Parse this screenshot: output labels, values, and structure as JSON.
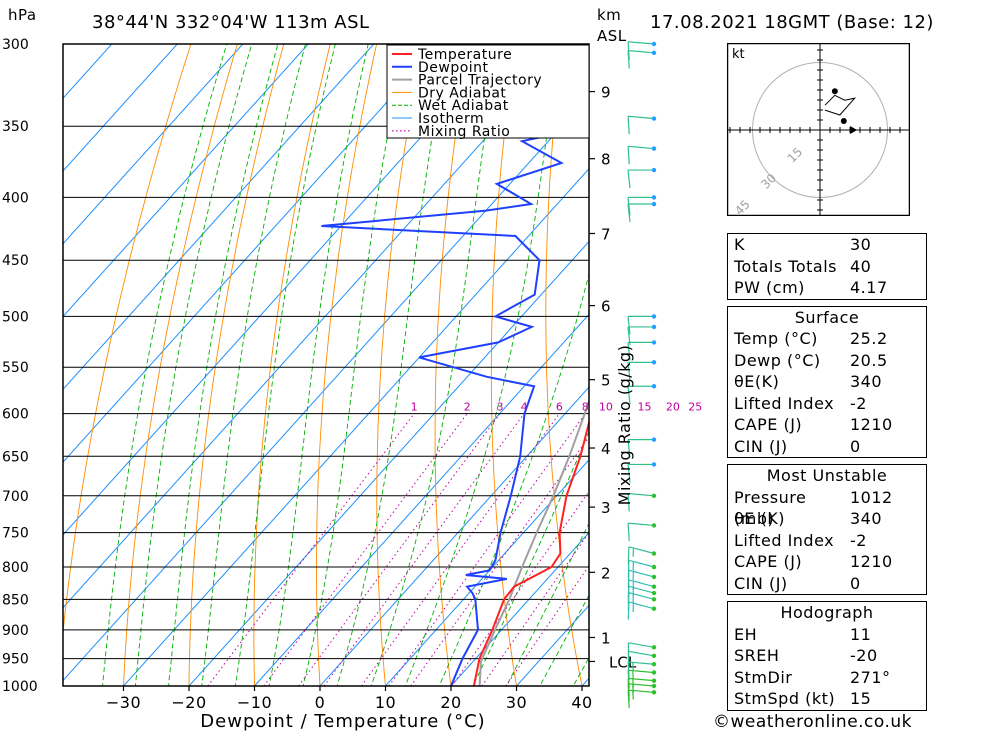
{
  "header": {
    "hpa": "hPa",
    "location": "38°44'N  332°04'W  113m  ASL",
    "km": "km",
    "asl": "ASL",
    "datetime": "17.08.2021  18GMT  (Base: 12)"
  },
  "footer": {
    "copyright": "©weatheronline.co.uk"
  },
  "chart_data": {
    "type": "line",
    "subtype": "skew-T log-P sounding",
    "xlabel": "Dewpoint / Temperature (°C)",
    "ylabel": "hPa",
    "right_axis_label": "km ASL",
    "mixing_axis_label": "Mixing Ratio (g/kg)",
    "pressure_ticks": [
      300,
      350,
      400,
      450,
      500,
      550,
      600,
      650,
      700,
      750,
      800,
      850,
      900,
      950,
      1000
    ],
    "temp_ticks": [
      -30,
      -20,
      -10,
      0,
      10,
      20,
      30,
      40
    ],
    "height_ticks": [
      {
        "label": "9",
        "p": 328
      },
      {
        "label": "8",
        "p": 372
      },
      {
        "label": "7",
        "p": 428
      },
      {
        "label": "6",
        "p": 490
      },
      {
        "label": "5",
        "p": 563
      },
      {
        "label": "4",
        "p": 640
      },
      {
        "label": "3",
        "p": 715
      },
      {
        "label": "2",
        "p": 808
      },
      {
        "label": "1",
        "p": 913
      },
      {
        "label": "LCL",
        "p": 955
      }
    ],
    "mixing_ratio_labels": [
      "1",
      "2",
      "3",
      "4",
      "6",
      "8",
      "10",
      "15",
      "20",
      "25"
    ],
    "mixing_ratio_values": [
      1,
      2,
      3,
      4,
      6,
      8,
      10,
      15,
      20,
      25
    ],
    "legend": [
      "Temperature",
      "Dewpoint",
      "Parcel Trajectory",
      "Dry Adiabat",
      "Wet Adiabat",
      "Isotherm",
      "Mixing Ratio"
    ],
    "legend_position": "top-center",
    "colors": {
      "temperature": "#ff2020",
      "dewpoint": "#2040ff",
      "parcel": "#a0a0a0",
      "dry_adiabat": "#ff8c00",
      "wet_adiabat": "#00b000",
      "isotherm": "#1e90ff",
      "mixing": "#c000a0"
    },
    "temperature": [
      {
        "p": 1012,
        "t": 25.2
      },
      {
        "p": 1000,
        "t": 23.5
      },
      {
        "p": 950,
        "t": 20.6
      },
      {
        "p": 900,
        "t": 18.6
      },
      {
        "p": 850,
        "t": 16.2
      },
      {
        "p": 830,
        "t": 16.0
      },
      {
        "p": 815,
        "t": 17.5
      },
      {
        "p": 800,
        "t": 19.0
      },
      {
        "p": 780,
        "t": 18.5
      },
      {
        "p": 750,
        "t": 15.5
      },
      {
        "p": 700,
        "t": 11.5
      },
      {
        "p": 650,
        "t": 8.2
      },
      {
        "p": 600,
        "t": 4.0
      },
      {
        "p": 550,
        "t": -0.5
      },
      {
        "p": 500,
        "t": -6.0
      },
      {
        "p": 480,
        "t": -8.2
      },
      {
        "p": 450,
        "t": -12.5
      },
      {
        "p": 420,
        "t": -17.0
      },
      {
        "p": 400,
        "t": -21.0
      },
      {
        "p": 380,
        "t": -24.5
      },
      {
        "p": 350,
        "t": -30.5
      },
      {
        "p": 320,
        "t": -36.5
      },
      {
        "p": 300,
        "t": -41.5
      }
    ],
    "dewpoint": [
      {
        "p": 1012,
        "td": 20.5
      },
      {
        "p": 1000,
        "td": 20.0
      },
      {
        "p": 950,
        "td": 18.0
      },
      {
        "p": 900,
        "td": 16.4
      },
      {
        "p": 850,
        "td": 11.8
      },
      {
        "p": 840,
        "td": 10.5
      },
      {
        "p": 830,
        "td": 8.8
      },
      {
        "p": 818,
        "td": 13.8
      },
      {
        "p": 812,
        "td": 7.0
      },
      {
        "p": 805,
        "td": 10.0
      },
      {
        "p": 790,
        "td": 9.5
      },
      {
        "p": 750,
        "td": 6.5
      },
      {
        "p": 700,
        "td": 3.0
      },
      {
        "p": 650,
        "td": -1.0
      },
      {
        "p": 600,
        "td": -6.2
      },
      {
        "p": 570,
        "td": -8.5
      },
      {
        "p": 560,
        "td": -17.0
      },
      {
        "p": 540,
        "td": -30.0
      },
      {
        "p": 525,
        "td": -20.0
      },
      {
        "p": 510,
        "td": -17.0
      },
      {
        "p": 500,
        "td": -24.0
      },
      {
        "p": 480,
        "td": -21.0
      },
      {
        "p": 450,
        "td": -25.0
      },
      {
        "p": 430,
        "td": -32.0
      },
      {
        "p": 422,
        "td": -63.0
      },
      {
        "p": 410,
        "td": -40.0
      },
      {
        "p": 405,
        "td": -34.0
      },
      {
        "p": 390,
        "td": -42.0
      },
      {
        "p": 375,
        "td": -35.0
      },
      {
        "p": 360,
        "td": -44.0
      },
      {
        "p": 352,
        "td": -37.0
      },
      {
        "p": 350,
        "td": -48.0
      },
      {
        "p": 340,
        "td": -52.0
      },
      {
        "p": 335,
        "td": -59.0
      },
      {
        "p": 325,
        "td": -54.0
      },
      {
        "p": 310,
        "td": -47.0
      },
      {
        "p": 300,
        "td": -47.5
      }
    ],
    "parcel": [
      {
        "p": 1012,
        "t": 25.2
      },
      {
        "p": 955,
        "t": 21.2
      },
      {
        "p": 900,
        "t": 19.0
      },
      {
        "p": 850,
        "t": 17.0
      },
      {
        "p": 800,
        "t": 14.5
      },
      {
        "p": 750,
        "t": 12.0
      },
      {
        "p": 700,
        "t": 9.5
      },
      {
        "p": 650,
        "t": 6.5
      },
      {
        "p": 600,
        "t": 3.0
      },
      {
        "p": 550,
        "t": -1.0
      },
      {
        "p": 500,
        "t": -5.5
      },
      {
        "p": 450,
        "t": -11.0
      },
      {
        "p": 400,
        "t": -17.5
      },
      {
        "p": 350,
        "t": -25.5
      },
      {
        "p": 310,
        "t": -33.5
      }
    ],
    "wind_barbs": [
      {
        "p": 1012,
        "dir": 275,
        "kt": 15
      },
      {
        "p": 1000,
        "dir": 275,
        "kt": 15
      },
      {
        "p": 990,
        "dir": 275,
        "kt": 15
      },
      {
        "p": 975,
        "dir": 275,
        "kt": 15
      },
      {
        "p": 960,
        "dir": 275,
        "kt": 15
      },
      {
        "p": 945,
        "dir": 280,
        "kt": 10
      },
      {
        "p": 930,
        "dir": 280,
        "kt": 10
      },
      {
        "p": 865,
        "dir": 285,
        "kt": 15
      },
      {
        "p": 850,
        "dir": 285,
        "kt": 15
      },
      {
        "p": 840,
        "dir": 285,
        "kt": 15
      },
      {
        "p": 830,
        "dir": 285,
        "kt": 15
      },
      {
        "p": 815,
        "dir": 285,
        "kt": 15
      },
      {
        "p": 800,
        "dir": 285,
        "kt": 15
      },
      {
        "p": 780,
        "dir": 285,
        "kt": 15
      },
      {
        "p": 740,
        "dir": 275,
        "kt": 10
      },
      {
        "p": 700,
        "dir": 275,
        "kt": 10
      },
      {
        "p": 660,
        "dir": 270,
        "kt": 10
      },
      {
        "p": 630,
        "dir": 270,
        "kt": 10
      },
      {
        "p": 570,
        "dir": 270,
        "kt": 10
      },
      {
        "p": 545,
        "dir": 270,
        "kt": 10
      },
      {
        "p": 525,
        "dir": 270,
        "kt": 10
      },
      {
        "p": 510,
        "dir": 270,
        "kt": 10
      },
      {
        "p": 500,
        "dir": 270,
        "kt": 10
      },
      {
        "p": 405,
        "dir": 270,
        "kt": 10
      },
      {
        "p": 400,
        "dir": 270,
        "kt": 10
      },
      {
        "p": 380,
        "dir": 270,
        "kt": 10
      },
      {
        "p": 365,
        "dir": 275,
        "kt": 10
      },
      {
        "p": 345,
        "dir": 275,
        "kt": 10
      },
      {
        "p": 305,
        "dir": 275,
        "kt": 10
      },
      {
        "p": 300,
        "dir": 275,
        "kt": 10
      }
    ],
    "hodograph": {
      "unit_label": "kt",
      "ring_labels": [
        "15",
        "30",
        "45"
      ],
      "points": [
        [
          0.5,
          1.5
        ],
        [
          1.5,
          2.5
        ],
        [
          2.5,
          2.0
        ],
        [
          3.5,
          2.2
        ],
        [
          2.0,
          0.5
        ],
        [
          0.5,
          1.0
        ]
      ],
      "storm_motion": {
        "dir": 271,
        "kt": 15
      }
    }
  },
  "indices": [
    {
      "label": "K",
      "value": "30"
    },
    {
      "label": "Totals Totals",
      "value": "40"
    },
    {
      "label": "PW (cm)",
      "value": "4.17"
    }
  ],
  "surface": {
    "title": "Surface",
    "rows": [
      {
        "label": "Temp (°C)",
        "value": "25.2"
      },
      {
        "label": "Dewp (°C)",
        "value": "20.5"
      },
      {
        "label": "θE(K)",
        "value": "340"
      },
      {
        "label": "Lifted Index",
        "value": "-2"
      },
      {
        "label": "CAPE (J)",
        "value": "1210"
      },
      {
        "label": "CIN (J)",
        "value": "0"
      }
    ]
  },
  "most_unstable": {
    "title": "Most Unstable",
    "rows": [
      {
        "label": "Pressure (mb)",
        "value": "1012"
      },
      {
        "label": "θE (K)",
        "value": "340"
      },
      {
        "label": "Lifted Index",
        "value": "-2"
      },
      {
        "label": "CAPE (J)",
        "value": "1210"
      },
      {
        "label": "CIN (J)",
        "value": "0"
      }
    ]
  },
  "hodograph_stats": {
    "title": "Hodograph",
    "rows": [
      {
        "label": "EH",
        "value": "11"
      },
      {
        "label": "SREH",
        "value": "-20"
      },
      {
        "label": "StmDir",
        "value": "271°"
      },
      {
        "label": "StmSpd (kt)",
        "value": "15"
      }
    ]
  }
}
